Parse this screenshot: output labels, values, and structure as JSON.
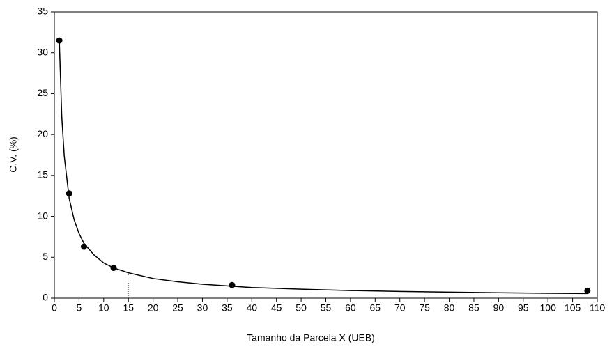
{
  "chart_data": {
    "type": "scatter",
    "xlabel": "Tamanho da Parcela X (UEB)",
    "ylabel": "C.V. (%)",
    "xlim": [
      0,
      110
    ],
    "ylim": [
      0,
      35
    ],
    "xticks": [
      0,
      5,
      10,
      15,
      20,
      25,
      30,
      35,
      40,
      45,
      50,
      55,
      60,
      65,
      70,
      75,
      80,
      85,
      90,
      95,
      100,
      105,
      110
    ],
    "yticks": [
      0,
      5,
      10,
      15,
      20,
      25,
      30,
      35
    ],
    "series": [
      {
        "color": "#000000",
        "x": [
          1,
          3,
          6,
          12,
          36,
          108
        ],
        "values": [
          31.5,
          12.8,
          6.3,
          3.7,
          1.6,
          0.9
        ]
      }
    ],
    "fit": {
      "color": "#000000",
      "x": [
        1,
        1.5,
        2,
        3,
        4,
        5,
        6,
        8,
        10,
        12,
        15,
        20,
        25,
        30,
        40,
        50,
        60,
        70,
        80,
        90,
        100,
        108
      ],
      "values": [
        31.5,
        22.2,
        17.4,
        12.2,
        9.6,
        7.9,
        6.7,
        5.3,
        4.3,
        3.7,
        3.1,
        2.4,
        2.0,
        1.7,
        1.3,
        1.1,
        0.93,
        0.82,
        0.73,
        0.66,
        0.6,
        0.56
      ]
    },
    "reference_line": {
      "x": 15,
      "y": 3.1
    }
  }
}
